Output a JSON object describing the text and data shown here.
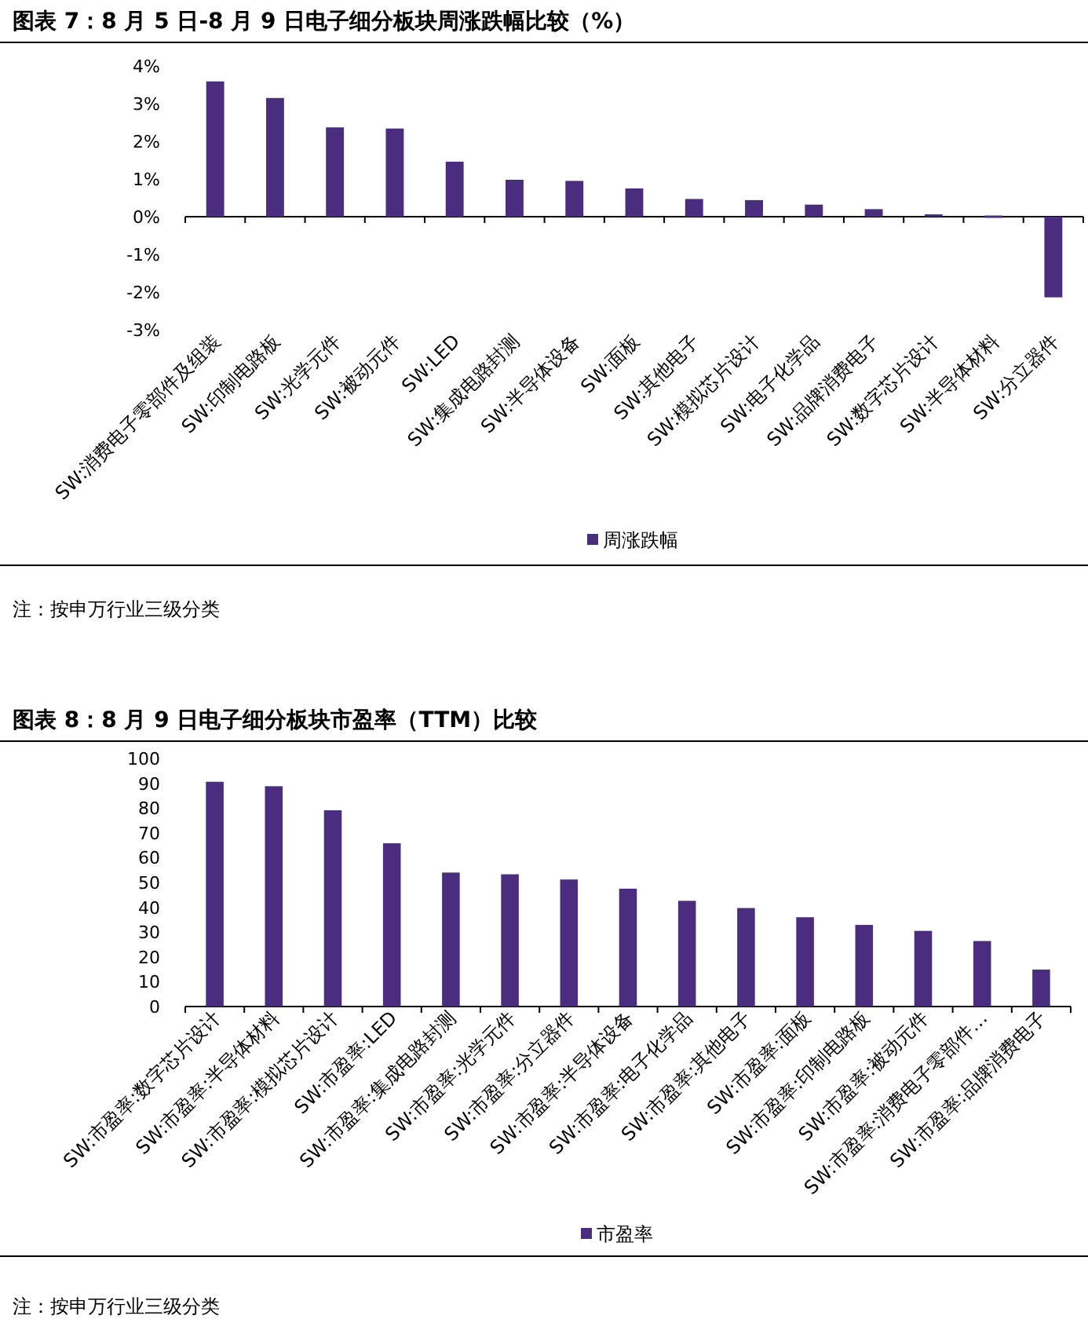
{
  "chart_data": [
    {
      "type": "bar",
      "title": "图表 7：8 月 5 日-8 月 9 日电子细分板块周涨跌幅比较（%）",
      "categories": [
        "SW:消费电子零部件及组装",
        "SW:印制电路板",
        "SW:光学元件",
        "SW:被动元件",
        "SW:LED",
        "SW:集成电路封测",
        "SW:半导体设备",
        "SW:面板",
        "SW:其他电子",
        "SW:模拟芯片设计",
        "SW:电子化学品",
        "SW:品牌消费电子",
        "SW:数字芯片设计",
        "SW:半导体材料",
        "SW:分立器件"
      ],
      "series": [
        {
          "name": "周涨跌幅",
          "color": "#4b2d7f",
          "values": [
            3.59,
            3.15,
            2.37,
            2.34,
            1.46,
            0.98,
            0.95,
            0.75,
            0.47,
            0.44,
            0.32,
            0.2,
            0.02,
            0,
            -2.14
          ]
        }
      ],
      "ylim": [
        -3,
        4
      ],
      "yticks": [
        {
          "value": -3,
          "label": "-3%"
        },
        {
          "value": -2,
          "label": "-2%"
        },
        {
          "value": -1,
          "label": "-1%"
        },
        {
          "value": 0,
          "label": "0%"
        },
        {
          "value": 1,
          "label": "1%"
        },
        {
          "value": 2,
          "label": "2%"
        },
        {
          "value": 3,
          "label": "3%"
        },
        {
          "value": 4,
          "label": "4%"
        }
      ],
      "legend": "bottom",
      "annotations": [
        "注：按申万行业三级分类"
      ]
    },
    {
      "type": "bar",
      "title": "图表 8：8 月 9 日电子细分板块市盈率（TTM）比较",
      "categories": [
        "SW:市盈率:数字芯片设计",
        "SW:市盈率:半导体材料",
        "SW:市盈率:模拟芯片设计",
        "SW:市盈率:LED",
        "SW:市盈率:集成电路封测",
        "SW:市盈率:光学元件",
        "SW:市盈率:分立器件",
        "SW:市盈率:半导体设备",
        "SW:市盈率:电子化学品",
        "SW:市盈率:其他电子",
        "SW:市盈率:面板",
        "SW:市盈率:印制电路板",
        "SW:市盈率:被动元件",
        "SW:市盈率:消费电子零部件…",
        "SW:市盈率:品牌消费电子"
      ],
      "series": [
        {
          "name": "市盈率",
          "color": "#4b2d7f",
          "values": [
            90.6,
            88.8,
            79.1,
            65.8,
            54,
            53.3,
            51.2,
            47.5,
            42.6,
            39.7,
            36,
            32.9,
            30.5,
            26.4,
            14.9
          ]
        }
      ],
      "ylim": [
        0,
        100
      ],
      "yticks": [
        0,
        10,
        20,
        30,
        40,
        50,
        60,
        70,
        80,
        90,
        100
      ],
      "legend": "bottom",
      "annotations": [
        "注：按申万行业三级分类"
      ]
    }
  ]
}
